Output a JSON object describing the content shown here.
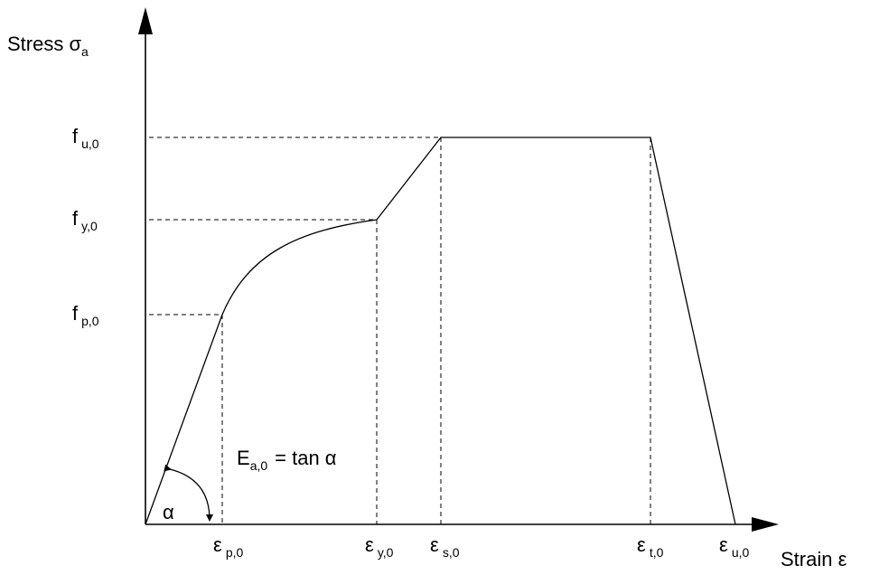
{
  "axes": {
    "y_label_main": "Stress σ",
    "y_label_sub": "a",
    "x_label": "Strain ε"
  },
  "stress_levels": {
    "fu": {
      "main": "f",
      "sub": "u,0"
    },
    "fy": {
      "main": "f",
      "sub": "y,0"
    },
    "fp": {
      "main": "f",
      "sub": "p,0"
    }
  },
  "strain_points": {
    "ep": {
      "main": "ε",
      "sub": "p,0"
    },
    "ey": {
      "main": "ε",
      "sub": "y,0"
    },
    "es": {
      "main": "ε",
      "sub": "s,0"
    },
    "et": {
      "main": "ε",
      "sub": "t,0"
    },
    "eu": {
      "main": "ε",
      "sub": "u,0"
    }
  },
  "annotations": {
    "alpha": "α",
    "modulus_main": "E",
    "modulus_sub": "a,0",
    "modulus_rest": "= tan α"
  },
  "colors": {
    "line": "#000000",
    "background": "#ffffff"
  }
}
